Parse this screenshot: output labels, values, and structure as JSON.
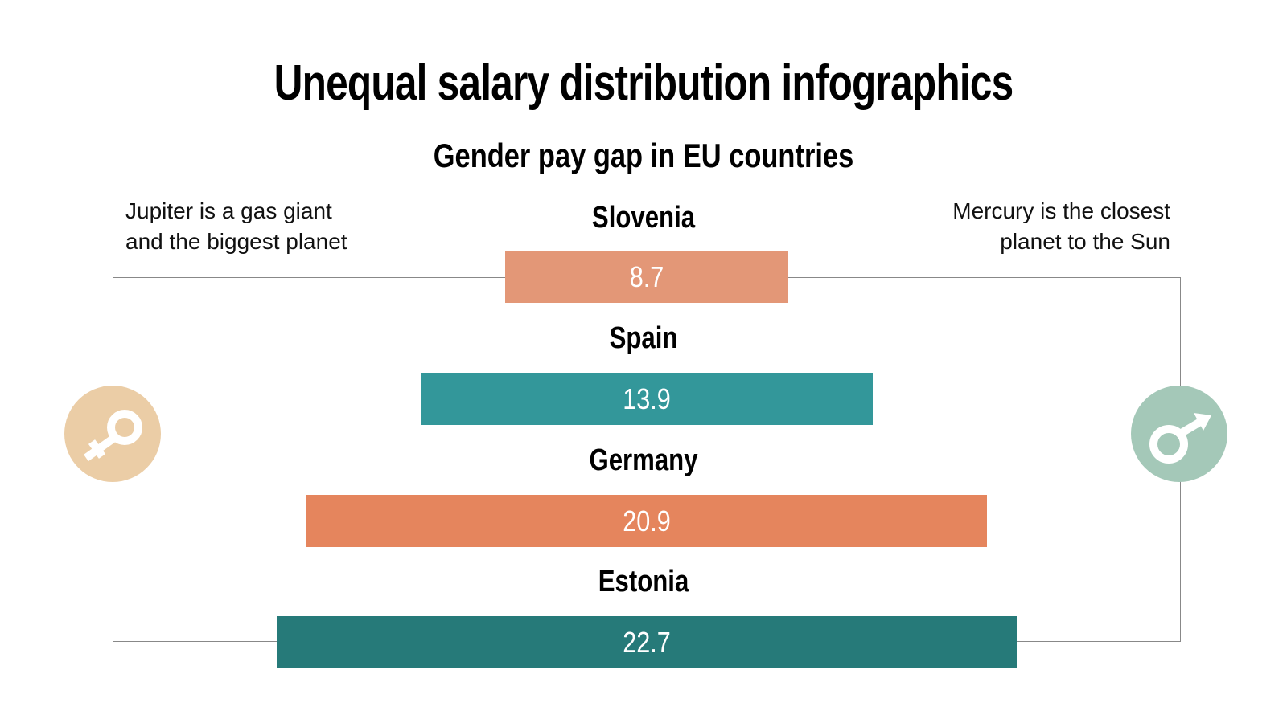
{
  "title": "Unequal salary distribution infographics",
  "subtitle": "Gender pay gap in EU countries",
  "left_note": {
    "line1": "Jupiter is a gas giant",
    "line2": "and the biggest planet",
    "icon": "female-symbol-icon",
    "color": "#EBCDA6"
  },
  "right_note": {
    "line1": "Mercury is the closest",
    "line2": "planet to the Sun",
    "icon": "male-symbol-icon",
    "color": "#A4C8B8"
  },
  "chart_data": {
    "type": "bar",
    "orientation": "horizontal-centered",
    "categories": [
      "Slovenia",
      "Spain",
      "Germany",
      "Estonia"
    ],
    "values": [
      8.7,
      13.9,
      20.9,
      22.7
    ],
    "value_labels": [
      "8.7",
      "13.9",
      "20.9",
      "22.7"
    ],
    "colors": [
      "#E39777",
      "#33979A",
      "#E5855D",
      "#267A79"
    ]
  }
}
